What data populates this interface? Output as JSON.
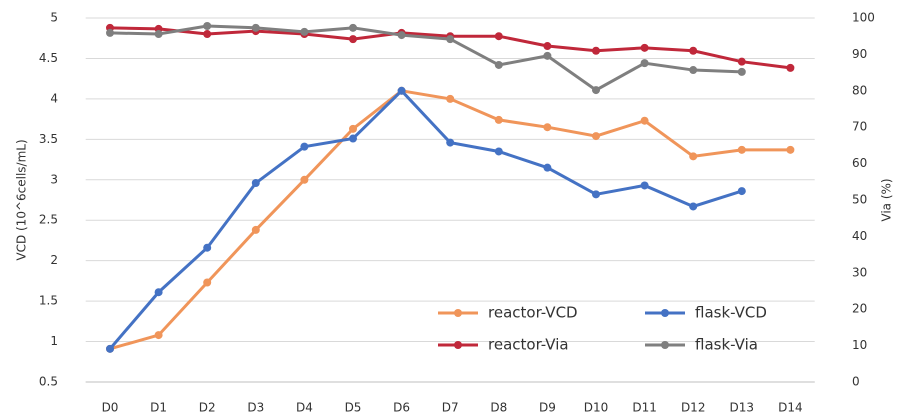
{
  "chart_data": {
    "type": "line",
    "y_label": "VCD (10^6cells/mL)",
    "y2_label": "Via (%)",
    "categories": [
      "D0",
      "D1",
      "D2",
      "D3",
      "D4",
      "D5",
      "D6",
      "D7",
      "D8",
      "D9",
      "D10",
      "D11",
      "D12",
      "D13",
      "D14"
    ],
    "series": [
      {
        "name": "reactor-VCD",
        "color": "#f0955a",
        "values": [
          0.91,
          1.08,
          1.73,
          2.38,
          3.0,
          3.63,
          4.1,
          4.0,
          3.74,
          3.65,
          3.54,
          3.73,
          3.29,
          3.37,
          3.37
        ]
      },
      {
        "name": "flask-VCD",
        "color": "#4472c4",
        "values": [
          0.91,
          1.61,
          2.16,
          2.96,
          3.41,
          3.51,
          4.1,
          3.46,
          3.35,
          3.15,
          2.82,
          2.93,
          2.67,
          2.86,
          null
        ]
      },
      {
        "name": "reactor-Via",
        "color": "#c0283a",
        "axis": "y2",
        "values": [
          97.3,
          97.0,
          95.6,
          96.4,
          95.6,
          94.2,
          95.9,
          95.0,
          95.0,
          92.3,
          91.0,
          91.8,
          91.0,
          88.0,
          86.3
        ]
      },
      {
        "name": "flask-Via",
        "color": "#7f7f7f",
        "axis": "y2",
        "values": [
          95.9,
          95.6,
          97.8,
          97.3,
          96.2,
          97.3,
          95.3,
          94.2,
          87.1,
          89.6,
          80.2,
          87.6,
          85.7,
          85.2,
          null
        ]
      }
    ],
    "ylim": [
      0.5,
      5
    ],
    "yticks": [
      0.5,
      1,
      1.5,
      2,
      2.5,
      3,
      3.5,
      4,
      4.5,
      5
    ],
    "y2lim": [
      0,
      100
    ],
    "y2ticks": [
      0,
      10,
      20,
      30,
      40,
      50,
      60,
      70,
      80,
      90,
      100
    ],
    "grid": true,
    "legend": "lower-right"
  }
}
